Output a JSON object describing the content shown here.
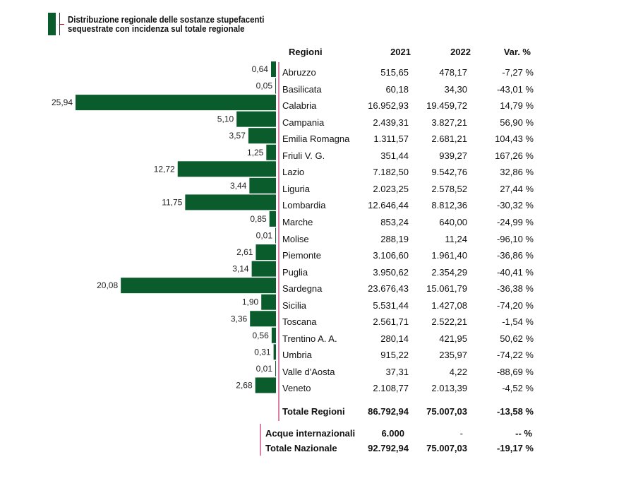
{
  "title": {
    "line1": "Distribuzione regionale delle sostanze stupefacenti",
    "line2": "sequestrate con incidenza sul totale regionale"
  },
  "colors": {
    "bar": "#0b5c2c",
    "accent_red": "#cc1111",
    "axis": "#b8004f"
  },
  "headers": {
    "region": "Regioni",
    "y2021": "2021",
    "y2022": "2022",
    "var": "Var. %"
  },
  "chart_data": {
    "type": "bar",
    "orientation": "horizontal",
    "title": "Distribuzione regionale delle sostanze stupefacenti sequestrate con incidenza sul totale regionale",
    "categories": [
      "Abruzzo",
      "Basilicata",
      "Calabria",
      "Campania",
      "Emilia Romagna",
      "Friuli V. G.",
      "Lazio",
      "Liguria",
      "Lombardia",
      "Marche",
      "Molise",
      "Piemonte",
      "Puglia",
      "Sardegna",
      "Sicilia",
      "Toscana",
      "Trentino A. A.",
      "Umbria",
      "Valle d'Aosta",
      "Veneto"
    ],
    "values": [
      0.64,
      0.05,
      25.94,
      5.1,
      3.57,
      1.25,
      12.72,
      3.44,
      11.75,
      0.85,
      0.01,
      2.61,
      3.14,
      20.08,
      1.9,
      3.36,
      0.56,
      0.31,
      0.01,
      2.68
    ],
    "value_labels": [
      "0,64",
      "0,05",
      "25,94",
      "5,10",
      "3,57",
      "1,25",
      "12,72",
      "3,44",
      "11,75",
      "0,85",
      "0,01",
      "2,61",
      "3,14",
      "20,08",
      "1,90",
      "3,36",
      "0,56",
      "0,31",
      "0,01",
      "2,68"
    ],
    "xlim": [
      0,
      26
    ]
  },
  "rows": [
    {
      "region": "Abruzzo",
      "y2021": "515,65",
      "y2022": "478,17",
      "var": "-7,27 %"
    },
    {
      "region": "Basilicata",
      "y2021": "60,18",
      "y2022": "34,30",
      "var": "-43,01 %"
    },
    {
      "region": "Calabria",
      "y2021": "16.952,93",
      "y2022": "19.459,72",
      "var": "14,79 %"
    },
    {
      "region": "Campania",
      "y2021": "2.439,31",
      "y2022": "3.827,21",
      "var": "56,90 %"
    },
    {
      "region": "Emilia Romagna",
      "y2021": "1.311,57",
      "y2022": "2.681,21",
      "var": "104,43 %"
    },
    {
      "region": "Friuli V. G.",
      "y2021": "351,44",
      "y2022": "939,27",
      "var": "167,26 %"
    },
    {
      "region": "Lazio",
      "y2021": "7.182,50",
      "y2022": "9.542,76",
      "var": "32,86 %"
    },
    {
      "region": "Liguria",
      "y2021": "2.023,25",
      "y2022": "2.578,52",
      "var": "27,44 %"
    },
    {
      "region": "Lombardia",
      "y2021": "12.646,44",
      "y2022": "8.812,36",
      "var": "-30,32 %"
    },
    {
      "region": "Marche",
      "y2021": "853,24",
      "y2022": "640,00",
      "var": "-24,99 %"
    },
    {
      "region": "Molise",
      "y2021": "288,19",
      "y2022": "11,24",
      "var": "-96,10 %"
    },
    {
      "region": "Piemonte",
      "y2021": "3.106,60",
      "y2022": "1.961,40",
      "var": "-36,86 %"
    },
    {
      "region": "Puglia",
      "y2021": "3.950,62",
      "y2022": "2.354,29",
      "var": "-40,41 %"
    },
    {
      "region": "Sardegna",
      "y2021": "23.676,43",
      "y2022": "15.061,79",
      "var": "-36,38 %"
    },
    {
      "region": "Sicilia",
      "y2021": "5.531,44",
      "y2022": "1.427,08",
      "var": "-74,20 %"
    },
    {
      "region": "Toscana",
      "y2021": "2.561,71",
      "y2022": "2.522,21",
      "var": "-1,54 %"
    },
    {
      "region": "Trentino A. A.",
      "y2021": "280,14",
      "y2022": "421,95",
      "var": "50,62 %"
    },
    {
      "region": "Umbria",
      "y2021": "915,22",
      "y2022": "235,97",
      "var": "-74,22 %"
    },
    {
      "region": "Valle d'Aosta",
      "y2021": "37,31",
      "y2022": "4,22",
      "var": "-88,69 %"
    },
    {
      "region": "Veneto",
      "y2021": "2.108,77",
      "y2022": "2.013,39",
      "var": "-4,52 %"
    }
  ],
  "totals": {
    "regioni": {
      "label": "Totale Regioni",
      "y2021": "86.792,94",
      "y2022": "75.007,03",
      "var": "-13,58 %"
    },
    "acque": {
      "label": "Acque internazionali",
      "y2021": "6.000",
      "y2022": "-",
      "var": "-- %"
    },
    "nazionale": {
      "label": "Totale Nazionale",
      "y2021": "92.792,94",
      "y2022": "75.007,03",
      "var": "-19,17 %"
    }
  }
}
